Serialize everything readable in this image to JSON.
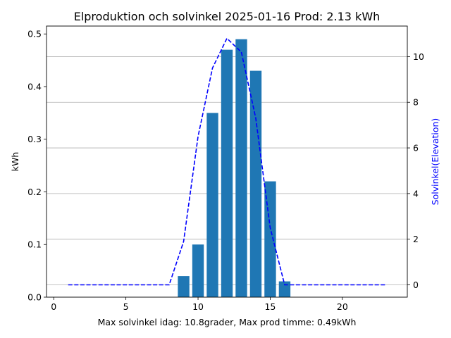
{
  "chart_data": {
    "type": "bar+line",
    "title": "Elproduktion och solvinkel 2025-01-16 Prod: 2.13 kWh",
    "xlabel": "Max solvinkel idag: 10.8grader, Max prod timme: 0.49kWh",
    "ylabel_left": "kWh",
    "ylabel_right": "Solvinkel(Elevation)",
    "xlim": [
      -0.5,
      24.5
    ],
    "ylim_left": [
      0,
      0.515
    ],
    "ylim_right": [
      -0.54,
      11.34
    ],
    "x_ticks": [
      0,
      5,
      10,
      15,
      20
    ],
    "y_ticks_left": [
      0.0,
      0.1,
      0.2,
      0.3,
      0.4,
      0.5
    ],
    "y_ticks_right": [
      0,
      2,
      4,
      6,
      8,
      10
    ],
    "grid": "horizontal, right axis",
    "bar_color": "#1f77b4",
    "line_color": "#0000ff",
    "line_style": "dashed",
    "bars": {
      "name": "Elproduktion",
      "x": [
        9,
        10,
        11,
        12,
        13,
        14,
        15,
        16
      ],
      "values": [
        0.04,
        0.1,
        0.35,
        0.47,
        0.49,
        0.43,
        0.22,
        0.03
      ]
    },
    "line": {
      "name": "Solvinkel",
      "x": [
        1,
        2,
        3,
        4,
        5,
        6,
        7,
        8,
        9,
        10,
        11,
        12,
        13,
        14,
        15,
        16,
        17,
        18,
        19,
        20,
        21,
        22,
        23
      ],
      "values": [
        0,
        0,
        0,
        0,
        0,
        0,
        0,
        0,
        1.9,
        6.5,
        9.5,
        10.8,
        10.2,
        7.3,
        2.5,
        0,
        0,
        0,
        0,
        0,
        0,
        0,
        0
      ]
    }
  }
}
